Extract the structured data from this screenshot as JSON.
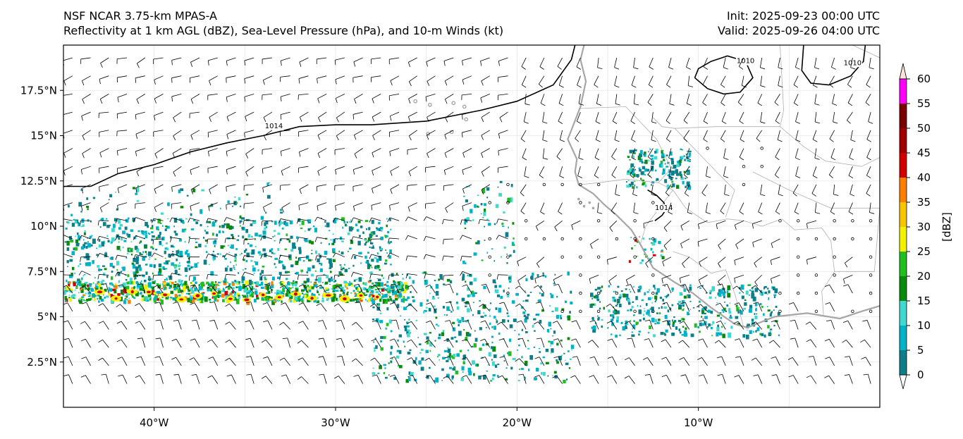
{
  "header": {
    "model_name": "NSF NCAR 3.75-km MPAS-A",
    "fields_description": "Reflectivity at 1 km AGL (dBZ), Sea-Level Pressure (hPa), and 10-m Winds (kt)",
    "init_time": "Init: 2025-09-23 00:00 UTC",
    "valid_time": "Valid: 2025-09-26 04:00 UTC"
  },
  "map": {
    "lon_range": [
      -45,
      0
    ],
    "lat_range": [
      0,
      20
    ],
    "lat_ticks": [
      {
        "value": 17.5,
        "label": "17.5°N"
      },
      {
        "value": 15,
        "label": "15°N"
      },
      {
        "value": 12.5,
        "label": "12.5°N"
      },
      {
        "value": 10,
        "label": "10°N"
      },
      {
        "value": 7.5,
        "label": "7.5°N"
      },
      {
        "value": 5,
        "label": "5°N"
      },
      {
        "value": 2.5,
        "label": "2.5°N"
      }
    ],
    "lon_ticks": [
      {
        "value": -40,
        "label": "40°W"
      },
      {
        "value": -30,
        "label": "30°W"
      },
      {
        "value": -20,
        "label": "20°W"
      },
      {
        "value": -10,
        "label": "10°W"
      }
    ],
    "isobar_labels": [
      {
        "text": "1014",
        "lon": -33.4,
        "lat": 15.4
      },
      {
        "text": "1014",
        "lon": -11.9,
        "lat": 10.9
      },
      {
        "text": "1010",
        "lon": -7.4,
        "lat": 19.0
      },
      {
        "text": "1010",
        "lon": -1.5,
        "lat": 18.9
      }
    ],
    "isobars": [
      {
        "value": 1014,
        "points": [
          [
            -45,
            12.2
          ],
          [
            -43.5,
            12.2
          ],
          [
            -42,
            12.9
          ],
          [
            -40,
            13.4
          ],
          [
            -38,
            14.1
          ],
          [
            -36,
            14.6
          ],
          [
            -34,
            15.0
          ],
          [
            -32,
            15.5
          ],
          [
            -30,
            15.6
          ],
          [
            -28,
            15.6
          ],
          [
            -25,
            15.8
          ],
          [
            -22,
            16.4
          ],
          [
            -20,
            16.9
          ],
          [
            -18,
            17.8
          ],
          [
            -17,
            19.2
          ],
          [
            -16.8,
            20.0
          ]
        ]
      },
      {
        "value": 1014,
        "points": [
          [
            -12.8,
            12.0
          ],
          [
            -12.3,
            11.7
          ],
          [
            -11.9,
            11.3
          ],
          [
            -11.8,
            10.9
          ],
          [
            -12.0,
            10.6
          ],
          [
            -12.4,
            10.3
          ]
        ]
      },
      {
        "value": 1010,
        "points": [
          [
            -10.2,
            18.2
          ],
          [
            -9.5,
            17.6
          ],
          [
            -8.6,
            17.3
          ],
          [
            -7.7,
            17.4
          ],
          [
            -7.0,
            18.2
          ],
          [
            -7.4,
            19.1
          ],
          [
            -8.4,
            19.4
          ],
          [
            -9.3,
            19.1
          ],
          [
            -10.0,
            18.7
          ],
          [
            -10.2,
            18.2
          ]
        ]
      },
      {
        "value": 1010,
        "points": [
          [
            -4.2,
            20.0
          ],
          [
            -4.3,
            18.6
          ],
          [
            -3.8,
            17.9
          ],
          [
            -2.8,
            17.8
          ],
          [
            -1.6,
            18.3
          ],
          [
            -0.9,
            19.1
          ],
          [
            -0.8,
            20.0
          ]
        ]
      }
    ]
  },
  "colorbar": {
    "label": "[dBZ]",
    "levels": [
      "0",
      "5",
      "10",
      "15",
      "20",
      "25",
      "30",
      "35",
      "40",
      "45",
      "50",
      "55",
      "60"
    ],
    "colors": [
      "#ffffff",
      "#0e7f8a",
      "#00b3c9",
      "#3fd9d0",
      "#0a8a0a",
      "#1fbf1f",
      "#f2f200",
      "#f7c600",
      "#ff7f00",
      "#d40000",
      "#a00000",
      "#7a0000",
      "#ff00ff",
      "#fde3dc"
    ]
  },
  "colors": {
    "coastline": "#a6a6a6",
    "borders": "#b0b0b0",
    "isobar": "#000000",
    "barb": "#000000",
    "grid": "#e6e6e6"
  }
}
